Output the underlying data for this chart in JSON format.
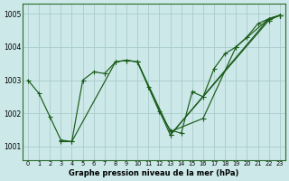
{
  "title": "Graphe pression niveau de la mer (hPa)",
  "bg_color": "#cce8e8",
  "grid_color": "#aacccc",
  "line_color": "#1a5c1a",
  "ylim": [
    1000.6,
    1005.3
  ],
  "xlim": [
    -0.5,
    23.5
  ],
  "yticks": [
    1001,
    1002,
    1003,
    1004,
    1005
  ],
  "xticks": [
    0,
    1,
    2,
    3,
    4,
    5,
    6,
    7,
    8,
    9,
    10,
    11,
    12,
    13,
    14,
    15,
    16,
    17,
    18,
    19,
    20,
    21,
    22,
    23
  ],
  "series0": [
    1003.0,
    1002.6,
    1001.9,
    1001.2,
    1001.15,
    1003.0,
    1003.25,
    1003.2,
    1003.55,
    1003.6,
    1003.55,
    1002.8,
    1002.05,
    1001.5,
    1001.4,
    1002.65,
    1002.5,
    1003.35,
    1003.8,
    1004.0,
    1004.3,
    1004.7,
    1004.85,
    1004.95
  ],
  "series1_x": [
    3,
    4,
    8,
    9,
    10,
    13,
    16,
    19,
    22,
    23
  ],
  "series1_y": [
    1001.15,
    1001.15,
    1003.55,
    1003.6,
    1003.55,
    1001.45,
    1001.85,
    1004.0,
    1004.85,
    1004.95
  ],
  "series2_x": [
    10,
    13,
    22,
    23
  ],
  "series2_y": [
    1003.55,
    1001.35,
    1004.85,
    1004.95
  ],
  "series3_x": [
    13,
    22,
    23
  ],
  "series3_y": [
    1001.35,
    1004.8,
    1004.95
  ]
}
